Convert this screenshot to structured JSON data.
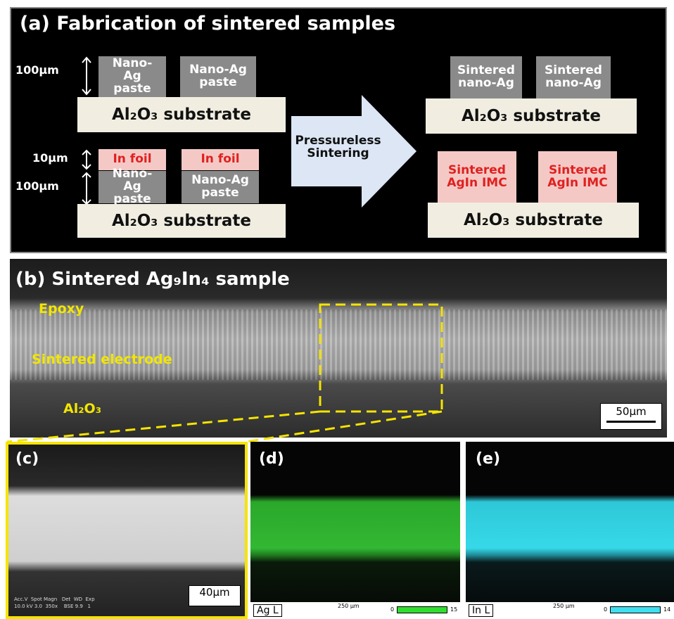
{
  "panel_a": {
    "title": "(a) Fabrication of sintered samples",
    "top_left": {
      "thickness": "100µm",
      "pastes": [
        "Nano-Ag paste",
        "Nano-Ag paste"
      ],
      "substrate": "Al₂O₃ substrate"
    },
    "bottom_left": {
      "foil_thickness": "10µm",
      "paste_thickness": "100µm",
      "foils": [
        "In foil",
        "In foil"
      ],
      "pastes": [
        "Nano-Ag paste",
        "Nano-Ag paste"
      ],
      "substrate": "Al₂O₃ substrate"
    },
    "arrow": "Pressureless Sintering",
    "top_right": {
      "layers": [
        "Sintered nano-Ag",
        "Sintered nano-Ag"
      ],
      "substrate": "Al₂O₃ substrate"
    },
    "bottom_right": {
      "layers": [
        "Sintered AgIn IMC",
        "Sintered AgIn IMC"
      ],
      "substrate": "Al₂O₃ substrate"
    }
  },
  "panel_b": {
    "title": "(b) Sintered Ag₉In₄ sample",
    "epoxy": "Epoxy",
    "electrode": "Sintered electrode",
    "substrate": "Al₂O₃",
    "scale": "50µm"
  },
  "panel_c": {
    "label": "(c)",
    "scale": "40µm",
    "info_header": "Acc.V  Spot Magn   Det  WD  Exp",
    "info_values": "10.0 kV 3.0  350x    BSE 9.9   1"
  },
  "panel_d": {
    "label": "(d)",
    "element": "Ag L",
    "scale": "250 µm",
    "min": "0",
    "max": "15"
  },
  "panel_e": {
    "label": "(e)",
    "element": "In L",
    "scale": "250 µm",
    "min": "0",
    "max": "14"
  }
}
